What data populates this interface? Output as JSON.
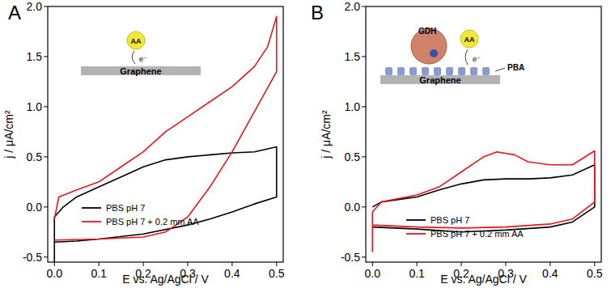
{
  "chart_data": [
    {
      "type": "line",
      "title": "A",
      "x_label": "E vs. Ag/AgCl / V",
      "y_label": "j / μA/cm²",
      "xlim": [
        -0.015,
        0.515
      ],
      "xticks": [
        {
          "value": 0,
          "label": "0.0"
        },
        0.1,
        0.2,
        0.3,
        0.4,
        0.5
      ],
      "ylim": [
        -0.55,
        2.0
      ],
      "yticks": [
        -0.5,
        {
          "value": 0,
          "label": "0.0"
        },
        0.5,
        {
          "value": 1,
          "label": "1.0"
        },
        1.5,
        {
          "value": 2,
          "label": "2.0"
        }
      ],
      "legend": "lower left",
      "annotations": [
        "AA",
        "e⁻",
        "Graphene"
      ],
      "series": [
        {
          "name": "PBS pH 7",
          "color": "#000000",
          "x": [
            0,
            0,
            0.02,
            0.05,
            0.1,
            0.15,
            0.2,
            0.25,
            0.3,
            0.35,
            0.4,
            0.45,
            0.5,
            0.5,
            0.45,
            0.4,
            0.35,
            0.3,
            0.2,
            0.1,
            0.05,
            0
          ],
          "values": [
            -0.55,
            -0.1,
            0.0,
            0.1,
            0.2,
            0.3,
            0.4,
            0.47,
            0.5,
            0.52,
            0.54,
            0.55,
            0.6,
            0.1,
            0.03,
            -0.05,
            -0.12,
            -0.18,
            -0.27,
            -0.32,
            -0.34,
            -0.35
          ]
        },
        {
          "name": "PBS pH 7 + 0.2 mm AA",
          "color": "#e8141c",
          "x": [
            0,
            0.01,
            0.05,
            0.1,
            0.15,
            0.2,
            0.25,
            0.3,
            0.35,
            0.4,
            0.45,
            0.48,
            0.5,
            0.5,
            0.45,
            0.4,
            0.35,
            0.3,
            0.25,
            0.2,
            0.1,
            0
          ],
          "values": [
            -0.12,
            0.1,
            0.17,
            0.25,
            0.4,
            0.55,
            0.75,
            0.9,
            1.05,
            1.2,
            1.4,
            1.6,
            1.9,
            1.35,
            0.95,
            0.55,
            0.2,
            -0.1,
            -0.25,
            -0.3,
            -0.32,
            -0.33
          ]
        }
      ]
    },
    {
      "type": "line",
      "title": "B",
      "x_label": "E vs. Ag/AgCl / V",
      "y_label": "j / μA/cm²",
      "xlim": [
        -0.015,
        0.515
      ],
      "xticks": [
        {
          "value": 0,
          "label": "0.0"
        },
        0.1,
        0.2,
        0.3,
        0.4,
        0.5
      ],
      "ylim": [
        -0.55,
        2.0
      ],
      "yticks": [
        -0.5,
        {
          "value": 0,
          "label": "0.0"
        },
        0.5,
        {
          "value": 1,
          "label": "1.0"
        },
        1.5,
        {
          "value": 2,
          "label": "2.0"
        }
      ],
      "legend": "lower left",
      "annotations": [
        "GDH",
        "AA",
        "e⁻",
        "PBA",
        "Graphene"
      ],
      "series": [
        {
          "name": "PBS pH 7",
          "color": "#000000",
          "x": [
            0,
            0.02,
            0.1,
            0.15,
            0.2,
            0.25,
            0.3,
            0.35,
            0.4,
            0.45,
            0.5,
            0.5,
            0.45,
            0.4,
            0.3,
            0.2,
            0.1,
            0
          ],
          "values": [
            0.0,
            0.05,
            0.1,
            0.17,
            0.23,
            0.27,
            0.28,
            0.28,
            0.29,
            0.32,
            0.42,
            0.0,
            -0.15,
            -0.2,
            -0.23,
            -0.25,
            -0.22,
            -0.2
          ]
        },
        {
          "name": "PBS pH 7 + 0.2 mm AA",
          "color": "#e8141c",
          "x": [
            0,
            0,
            0.02,
            0.1,
            0.15,
            0.2,
            0.25,
            0.28,
            0.32,
            0.35,
            0.4,
            0.45,
            0.5,
            0.5,
            0.45,
            0.4,
            0.3,
            0.2,
            0.1,
            0
          ],
          "values": [
            -0.45,
            -0.05,
            0.05,
            0.12,
            0.2,
            0.35,
            0.5,
            0.55,
            0.52,
            0.45,
            0.42,
            0.42,
            0.56,
            0.05,
            -0.12,
            -0.17,
            -0.2,
            -0.21,
            -0.2,
            -0.18
          ]
        }
      ]
    }
  ]
}
